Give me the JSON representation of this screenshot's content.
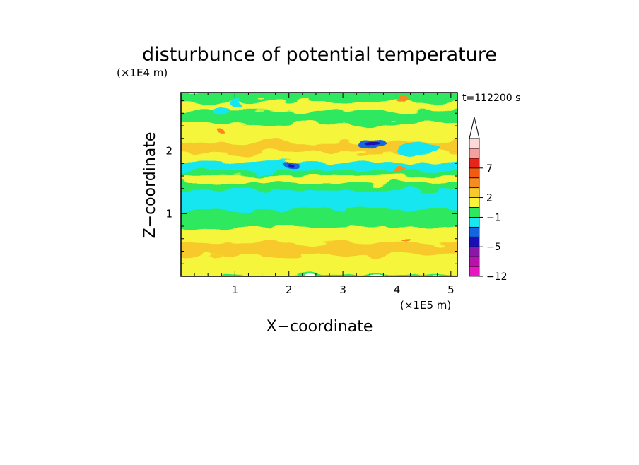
{
  "chart_data": {
    "type": "heatmap",
    "title": "disturbunce of potential temperature",
    "time_label": "t=112200 s",
    "xlabel": "X−coordinate",
    "ylabel": "Z−coordinate",
    "x_unit": "(×1E5 m)",
    "y_unit": "(×1E4 m)",
    "xlim": [
      0,
      5.12
    ],
    "ylim": [
      0,
      2.93
    ],
    "x_ticks": [
      {
        "value": 1,
        "label": "1"
      },
      {
        "value": 2,
        "label": "2"
      },
      {
        "value": 3,
        "label": "3"
      },
      {
        "value": 4,
        "label": "4"
      },
      {
        "value": 5,
        "label": "5"
      }
    ],
    "y_ticks": [
      {
        "value": 1,
        "label": "1"
      },
      {
        "value": 2,
        "label": "2"
      }
    ],
    "colorbar": {
      "colors": [
        "#e817c4",
        "#b713ac",
        "#8a17a8",
        "#1a0fb5",
        "#1565e0",
        "#18e6f0",
        "#2ee860",
        "#f5f53a",
        "#f7c92a",
        "#f78c1e",
        "#f25a12",
        "#e8251b",
        "#f5a0a0",
        "#ffd9d9"
      ],
      "tick_labels": [
        {
          "value": "7",
          "level_index": 3
        },
        {
          "value": "2",
          "level_index": 6
        },
        {
          "value": "−1",
          "level_index": 8
        },
        {
          "value": "−5",
          "level_index": 11
        },
        {
          "value": "−12",
          "level_index": 14
        }
      ]
    },
    "bands": [
      {
        "z": 0.0,
        "color": "#2ee860"
      },
      {
        "z": 0.03,
        "color": "#f5f53a"
      },
      {
        "z": 0.35,
        "color": "#f7c92a"
      },
      {
        "z": 0.55,
        "color": "#f5f53a"
      },
      {
        "z": 0.8,
        "color": "#2ee860"
      },
      {
        "z": 1.07,
        "color": "#18e6f0"
      },
      {
        "z": 1.38,
        "color": "#2ee860"
      },
      {
        "z": 1.5,
        "color": "#f5f53a"
      },
      {
        "z": 1.62,
        "color": "#2ee860"
      },
      {
        "z": 1.7,
        "color": "#18e6f0"
      },
      {
        "z": 1.83,
        "color": "#f5f53a"
      },
      {
        "z": 2.0,
        "color": "#f7c92a"
      },
      {
        "z": 2.15,
        "color": "#f5f53a"
      },
      {
        "z": 2.45,
        "color": "#2ee860"
      },
      {
        "z": 2.65,
        "color": "#f5f53a"
      },
      {
        "z": 2.8,
        "color": "#2ee860"
      }
    ],
    "features": [
      {
        "x": 3.55,
        "z": 2.12,
        "rx": 0.25,
        "rz": 0.08,
        "color": "#1565e0"
      },
      {
        "x": 3.55,
        "z": 2.12,
        "rx": 0.12,
        "rz": 0.04,
        "color": "#1a0fb5"
      },
      {
        "x": 2.05,
        "z": 1.78,
        "rx": 0.15,
        "rz": 0.05,
        "color": "#1565e0"
      },
      {
        "x": 2.05,
        "z": 1.78,
        "rx": 0.06,
        "rz": 0.025,
        "color": "#1a0fb5"
      },
      {
        "x": 0.75,
        "z": 2.65,
        "rx": 0.15,
        "rz": 0.08,
        "color": "#18e6f0"
      },
      {
        "x": 1.05,
        "z": 2.75,
        "rx": 0.1,
        "rz": 0.06,
        "color": "#18e6f0"
      },
      {
        "x": 4.4,
        "z": 2.02,
        "rx": 0.35,
        "rz": 0.1,
        "color": "#18e6f0"
      },
      {
        "x": 1.5,
        "z": 1.7,
        "rx": 0.5,
        "rz": 0.06,
        "color": "#18e6f0"
      },
      {
        "x": 0.72,
        "z": 2.3,
        "rx": 0.08,
        "rz": 0.04,
        "color": "#f78c1e"
      },
      {
        "x": 4.15,
        "z": 0.58,
        "rx": 0.08,
        "rz": 0.03,
        "color": "#f78c1e"
      },
      {
        "x": 4.1,
        "z": 1.72,
        "rx": 0.1,
        "rz": 0.04,
        "color": "#f78c1e"
      },
      {
        "x": 4.05,
        "z": 2.78,
        "rx": 0.1,
        "rz": 0.05,
        "color": "#f78c1e"
      }
    ]
  }
}
